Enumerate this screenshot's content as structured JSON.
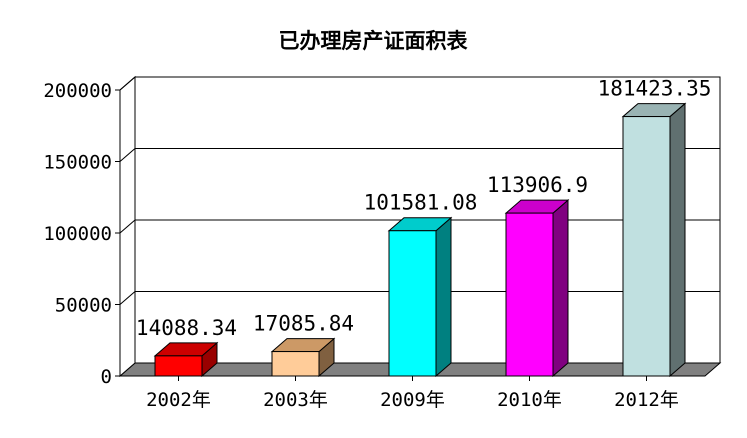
{
  "chart_data": {
    "type": "bar",
    "title": "已办理房产证面积表",
    "categories": [
      "2002年",
      "2003年",
      "2009年",
      "2010年",
      "2012年"
    ],
    "values": [
      14088.34,
      17085.84,
      101581.08,
      113906.9,
      181423.35
    ],
    "value_labels": [
      "14088.34",
      "17085.84",
      "101581.08",
      "113906.9",
      "181423.35"
    ],
    "ylim": [
      0,
      200000
    ],
    "yticks": [
      "0",
      "50000",
      "100000",
      "150000",
      "200000"
    ],
    "grid": true,
    "three_d": true,
    "legend": "none",
    "colors": [
      {
        "front": "#ff0000",
        "top": "#cc0000",
        "side": "#990000"
      },
      {
        "front": "#ffcc99",
        "top": "#cc9966",
        "side": "#806040"
      },
      {
        "front": "#00ffff",
        "top": "#00cccc",
        "side": "#008080"
      },
      {
        "front": "#ff00ff",
        "top": "#cc00cc",
        "side": "#800080"
      },
      {
        "front": "#c0e0e0",
        "top": "#99b3b3",
        "side": "#607070"
      }
    ]
  }
}
